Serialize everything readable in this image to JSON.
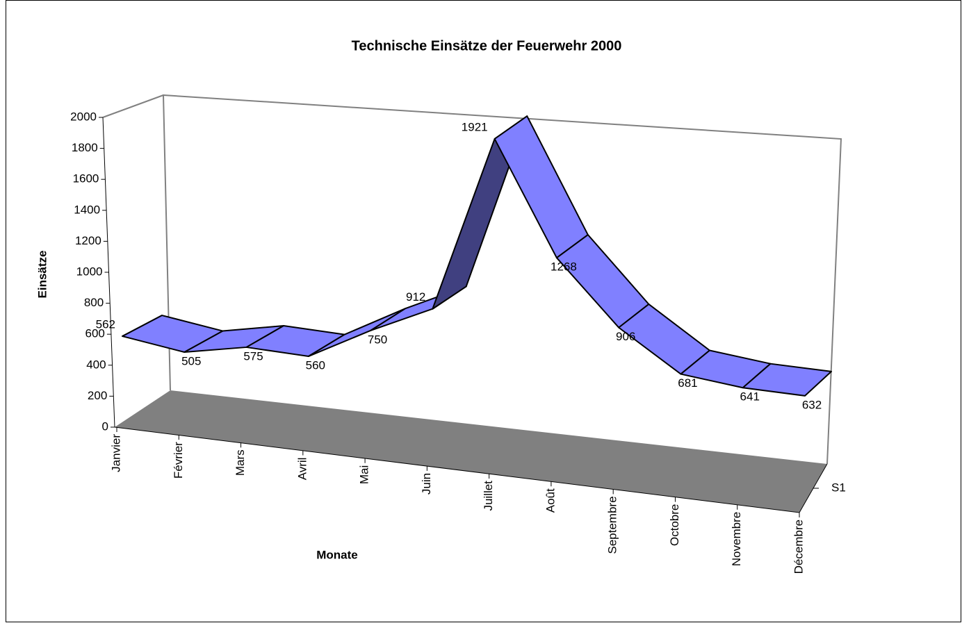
{
  "chart_data": {
    "type": "line3d",
    "title": "Technische Einsätze der Feuerwehr 2000",
    "x_label": "Monate",
    "y_label": "Einsätze",
    "categories": [
      "Janvier",
      "Février",
      "Mars",
      "Avril",
      "Mai",
      "Juin",
      "Juillet",
      "Août",
      "Septembre",
      "Octobre",
      "Novembre",
      "Décembre"
    ],
    "series": [
      {
        "name": "S1",
        "color": "#8080ff",
        "shade": "#404080",
        "values": [
          562,
          505,
          575,
          560,
          750,
          912,
          1921,
          1268,
          906,
          681,
          641,
          632
        ]
      }
    ],
    "ylim": [
      0,
      2000
    ],
    "yticks": [
      0,
      200,
      400,
      600,
      800,
      1000,
      1200,
      1400,
      1600,
      1800,
      2000
    ],
    "floor_color": "#808080",
    "data_labels": true
  }
}
